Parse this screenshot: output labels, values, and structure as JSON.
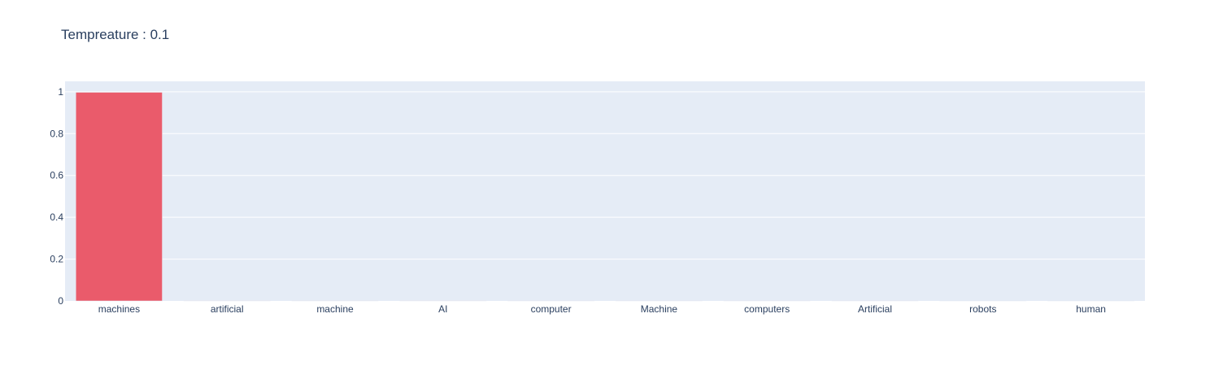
{
  "chart_data": {
    "type": "bar",
    "title": "Tempreature : 0.1",
    "categories": [
      "machines",
      "artificial",
      "machine",
      "AI",
      "computer",
      "Machine",
      "computers",
      "Artificial",
      "robots",
      "human"
    ],
    "values": [
      0.9975,
      0.0006,
      0.0005,
      0.0003,
      0.0002,
      0.0002,
      0.0002,
      0.0002,
      0.0001,
      0.0001
    ],
    "ylim": [
      0,
      1.05
    ],
    "yticks": [
      0,
      0.2,
      0.4,
      0.6,
      0.8,
      1
    ],
    "ytick_labels": [
      "0",
      "0.2",
      "0.4",
      "0.6",
      "0.8",
      "1"
    ],
    "xlabel": "",
    "ylabel": "",
    "grid": true,
    "legend": "none",
    "colors": {
      "bar": "#ea5b6b",
      "plot_background": "#e5ecf6",
      "grid": "#ffffff",
      "text": "#2a3f5f"
    }
  }
}
